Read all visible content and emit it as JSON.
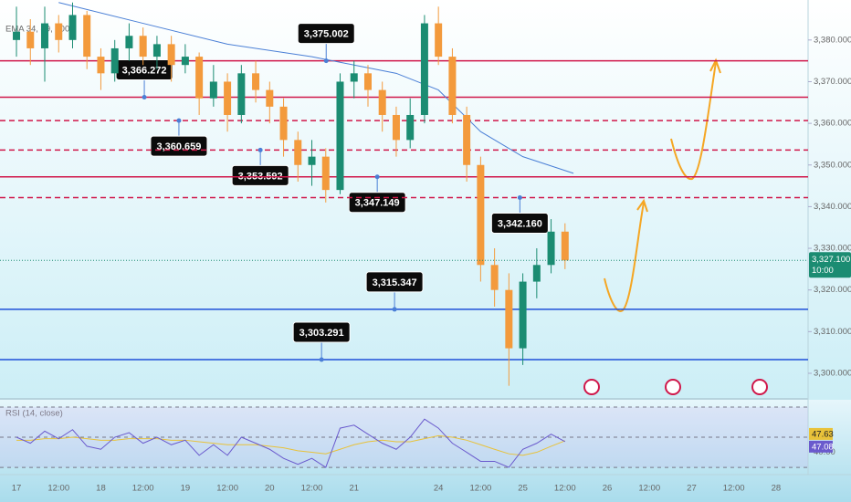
{
  "chart_data": {
    "type": "candlestick",
    "indicator_label": "EMA 34, 89, 200",
    "up_color": "#1b8c72",
    "down_color": "#f39a3c",
    "x": [
      0,
      0.33,
      0.67,
      1,
      1.33,
      1.67,
      2,
      2.33,
      2.67,
      3,
      3.33,
      3.67,
      4,
      4.33,
      4.67,
      5,
      5.33,
      5.67,
      6,
      6.33,
      6.67,
      7,
      7.33,
      7.67,
      8,
      8.33,
      8.67,
      9,
      9.33,
      9.67,
      10,
      10.33,
      10.67,
      11,
      11.33,
      11.67,
      12,
      12.33,
      12.67,
      13
    ],
    "open": [
      3380,
      3382,
      3378,
      3384,
      3380,
      3386,
      3376,
      3372,
      3378,
      3381,
      3376,
      3379,
      3374,
      3376,
      3366,
      3370,
      3362,
      3372,
      3368,
      3364,
      3356,
      3350,
      3352,
      3344,
      3370,
      3372,
      3368,
      3362,
      3356,
      3362,
      3384,
      3376,
      3362,
      3350,
      3326,
      3320,
      3306,
      3322,
      3326,
      3334
    ],
    "high": [
      3388,
      3385,
      3388,
      3386,
      3389,
      3387,
      3378,
      3380,
      3384,
      3383,
      3381,
      3381,
      3379,
      3377,
      3374,
      3372,
      3374,
      3375,
      3370,
      3366,
      3358,
      3356,
      3354,
      3372,
      3375,
      3374,
      3370,
      3364,
      3366,
      3386,
      3388,
      3378,
      3364,
      3352,
      3330,
      3324,
      3324,
      3330,
      3337,
      3336
    ],
    "low": [
      3376,
      3374,
      3370,
      3377,
      3378,
      3373,
      3368,
      3370,
      3375,
      3374,
      3373,
      3370,
      3372,
      3362,
      3364,
      3358,
      3360,
      3365,
      3360,
      3352,
      3346,
      3345,
      3341,
      3343,
      3366,
      3364,
      3358,
      3352,
      3354,
      3360,
      3374,
      3360,
      3346,
      3322,
      3316,
      3297,
      3302,
      3318,
      3324,
      3325
    ],
    "close": [
      3382,
      3378,
      3384,
      3380,
      3386,
      3376,
      3372,
      3378,
      3381,
      3376,
      3379,
      3374,
      3376,
      3366,
      3370,
      3362,
      3372,
      3368,
      3364,
      3356,
      3350,
      3352,
      3344,
      3370,
      3372,
      3368,
      3362,
      3356,
      3362,
      3384,
      3376,
      3362,
      3350,
      3326,
      3320,
      3306,
      3322,
      3326,
      3334,
      3327.1
    ],
    "ema": {
      "color": "#4a7fd6",
      "x": [
        1,
        3,
        5,
        7,
        8,
        9,
        10,
        11,
        12,
        13.2
      ],
      "values": [
        3389,
        3384,
        3379,
        3376,
        3374,
        3372,
        3368,
        3358,
        3352,
        3348
      ]
    },
    "xlim": [
      -0.39,
      18.76
    ],
    "ylim": [
      3294.3,
      3389.6
    ],
    "xticks": [
      {
        "value": 0,
        "label": "17"
      },
      {
        "value": 1,
        "label": "12:00"
      },
      {
        "value": 2,
        "label": "18"
      },
      {
        "value": 3,
        "label": "12:00"
      },
      {
        "value": 4,
        "label": "19"
      },
      {
        "value": 5,
        "label": "12:00"
      },
      {
        "value": 6,
        "label": "20"
      },
      {
        "value": 7,
        "label": "12:00"
      },
      {
        "value": 8,
        "label": "21"
      },
      {
        "value": 10,
        "label": "24"
      },
      {
        "value": 11,
        "label": "12:00"
      },
      {
        "value": 12,
        "label": "25"
      },
      {
        "value": 13,
        "label": "12:00"
      },
      {
        "value": 14,
        "label": "26"
      },
      {
        "value": 15,
        "label": "12:00"
      },
      {
        "value": 16,
        "label": "27"
      },
      {
        "value": 17,
        "label": "12:00"
      },
      {
        "value": 18,
        "label": "28"
      }
    ],
    "yticks": [
      {
        "value": 3300,
        "label": "3,300.000"
      },
      {
        "value": 3310,
        "label": "3,310.000"
      },
      {
        "value": 3320,
        "label": "3,320.000"
      },
      {
        "value": 3330,
        "label": "3,330.000"
      },
      {
        "value": 3340,
        "label": "3,340.000"
      },
      {
        "value": 3350,
        "label": "3,350.000"
      },
      {
        "value": 3360,
        "label": "3,360.000"
      },
      {
        "value": 3370,
        "label": "3,370.000"
      },
      {
        "value": 3380,
        "label": "3,380.000"
      }
    ],
    "last_price": {
      "value": 3327.1,
      "label": "3,327.100"
    },
    "countdown": "10:00",
    "levels": [
      {
        "value": 3375.002,
        "label": "3,375.002",
        "x": 7.34,
        "color": "#d0174a",
        "dashed": false
      },
      {
        "value": 3366.272,
        "label": "3,366.272",
        "x": 3.03,
        "color": "#d0174a",
        "dashed": false
      },
      {
        "value": 3360.659,
        "label": "3,360.659",
        "x": 3.85,
        "color": "#d0174a",
        "dashed": true
      },
      {
        "value": 3353.592,
        "label": "3,353.592",
        "x": 5.78,
        "color": "#d0174a",
        "dashed": true
      },
      {
        "value": 3347.149,
        "label": "3,347.149",
        "x": 8.55,
        "color": "#d0174a",
        "dashed": false
      },
      {
        "value": 3342.16,
        "label": "3,342.160",
        "x": 11.93,
        "color": "#d0174a",
        "dashed": true
      },
      {
        "value": 3315.347,
        "label": "3,315.347",
        "x": 8.96,
        "color": "#1e4fd8",
        "dashed": false
      },
      {
        "value": 3303.291,
        "label": "3,303.291",
        "x": 7.23,
        "color": "#1e4fd8",
        "dashed": false
      }
    ],
    "rsi": {
      "title": "RSI (14, close)",
      "color": "#6a5acd",
      "ma_color": "#e8c23a",
      "ylim": [
        25.2,
        73.6
      ],
      "levels": [
        70,
        50,
        30
      ],
      "yticks": [
        {
          "value": 40,
          "label": "40.00"
        }
      ],
      "values": [
        50,
        46,
        54,
        49,
        55,
        44,
        42,
        50,
        53,
        46,
        50,
        45,
        48,
        38,
        45,
        38,
        50,
        46,
        42,
        36,
        32,
        36,
        30,
        56,
        58,
        52,
        46,
        42,
        50,
        62,
        56,
        46,
        40,
        34,
        34,
        30,
        42,
        46,
        52,
        47.08
      ],
      "ma": [
        48,
        48,
        49,
        49,
        50,
        49,
        48,
        48,
        49,
        49,
        49,
        48,
        48,
        47,
        46,
        45,
        45,
        45,
        44,
        43,
        41,
        40,
        39,
        42,
        45,
        47,
        48,
        47,
        47,
        49,
        51,
        50,
        48,
        45,
        42,
        39,
        38,
        40,
        44,
        47.63
      ],
      "last_value_label": "47.08",
      "last_ma_label": "47.63"
    }
  }
}
